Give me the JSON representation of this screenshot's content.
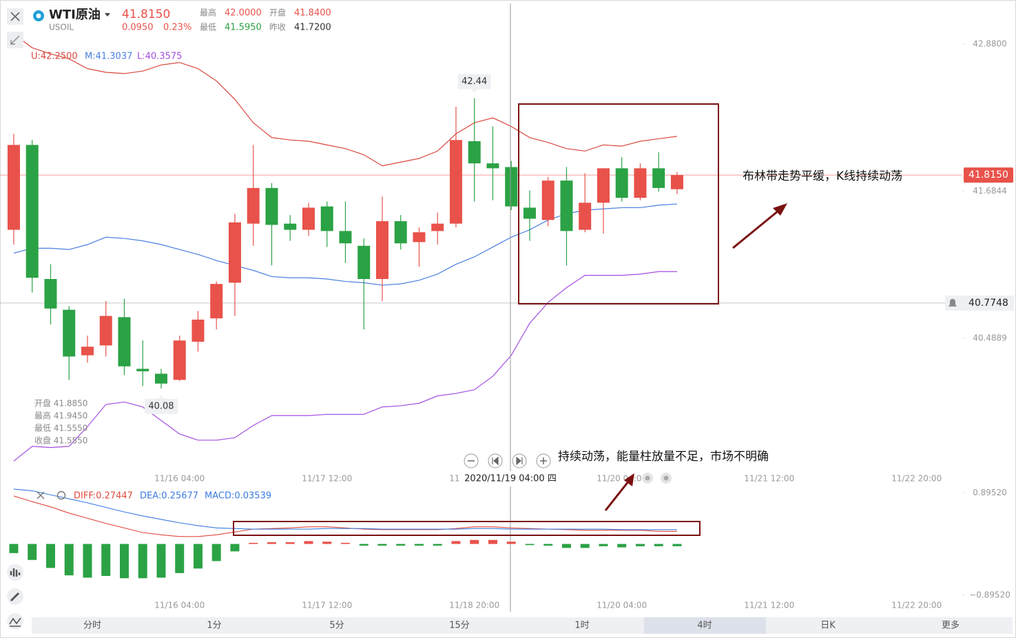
{
  "header": {
    "symbol": "WTI原油",
    "code": "USOIL",
    "price": "41.8150",
    "change": "0.0950",
    "change_pct": "0.23%",
    "stats": [
      {
        "label": "最高",
        "value": "42.0000"
      },
      {
        "label": "开盘",
        "value": "41.8400"
      },
      {
        "label": "最低",
        "value": "41.5950"
      },
      {
        "label": "昨收",
        "value": "41.7200"
      }
    ]
  },
  "readout": [
    "开盘 41.8850",
    "最高 41.9450",
    "最低 41.5550",
    "收盘 41.5550"
  ],
  "chart_data": [
    {
      "type": "candlestick",
      "categories": [
        null,
        null,
        null,
        null,
        null,
        null,
        null,
        null,
        null,
        "11/16 04:00",
        null,
        null,
        null,
        null,
        null,
        null,
        null,
        "11/17 12:00",
        null,
        null,
        null,
        null,
        null,
        null,
        null,
        "11/18 20:00",
        null,
        null,
        null,
        null,
        null,
        null,
        null,
        "11/20 04:00",
        null,
        null,
        null,
        null,
        null,
        null,
        null,
        "11/21 12:00",
        null,
        null,
        null,
        null,
        null,
        null,
        null,
        "11/22 20:00"
      ],
      "open": [
        41.37,
        42.06,
        40.97,
        40.72,
        40.35,
        40.43,
        40.66,
        40.24,
        40.2,
        40.15,
        40.46,
        40.65,
        40.94,
        41.42,
        41.71,
        41.42,
        41.37,
        41.56,
        41.36,
        41.24,
        40.97,
        41.44,
        41.27,
        41.36,
        41.42,
        42.09,
        41.91,
        41.88,
        41.55,
        41.45,
        41.77,
        41.37,
        41.59,
        41.87,
        41.63,
        41.87,
        41.7,
        null,
        null,
        null,
        null,
        null,
        null,
        null,
        null,
        null,
        null,
        null,
        null,
        null
      ],
      "high": [
        42.15,
        42.1,
        41.09,
        40.75,
        40.51,
        40.79,
        40.81,
        40.47,
        40.24,
        40.51,
        40.71,
        40.95,
        41.5,
        42.06,
        41.75,
        41.49,
        41.59,
        41.6,
        41.6,
        41.3,
        41.64,
        41.49,
        41.39,
        41.51,
        42.37,
        42.44,
        42.21,
        41.93,
        41.69,
        41.8,
        41.88,
        41.83,
        41.87,
        41.96,
        41.91,
        42.0,
        41.84,
        null,
        null,
        null,
        null,
        null,
        null,
        null,
        null,
        null,
        null,
        null,
        null,
        null
      ],
      "low": [
        41.25,
        40.86,
        40.6,
        40.15,
        40.29,
        40.34,
        40.19,
        40.1,
        40.08,
        40.14,
        40.38,
        40.56,
        40.67,
        41.24,
        41.08,
        41.28,
        41.32,
        41.23,
        41.1,
        40.56,
        40.79,
        41.21,
        41.07,
        41.25,
        41.39,
        41.6,
        41.61,
        41.53,
        41.28,
        41.4,
        41.08,
        41.35,
        41.34,
        41.6,
        41.61,
        41.68,
        41.66,
        null,
        null,
        null,
        null,
        null,
        null,
        null,
        null,
        null,
        null,
        null,
        null,
        null
      ],
      "close": [
        42.06,
        40.98,
        40.73,
        40.34,
        40.42,
        40.67,
        40.26,
        40.22,
        40.12,
        40.47,
        40.64,
        40.93,
        41.43,
        41.71,
        41.41,
        41.37,
        41.55,
        41.36,
        41.26,
        40.97,
        41.44,
        41.26,
        41.35,
        41.42,
        42.1,
        41.91,
        41.87,
        41.56,
        41.46,
        41.77,
        41.36,
        41.59,
        41.87,
        41.63,
        41.87,
        41.71,
        41.815,
        null,
        null,
        null,
        null,
        null,
        null,
        null,
        null,
        null,
        null,
        null,
        null,
        null
      ],
      "up_color": "#e8524a",
      "down_color": "#2ba245",
      "series": [
        {
          "name": "U:42.2500",
          "color": "#d9473d",
          "values": [
            42.96,
            42.85,
            42.8,
            42.76,
            42.68,
            42.65,
            42.64,
            42.66,
            42.71,
            42.73,
            42.68,
            42.58,
            42.43,
            42.24,
            42.12,
            42.1,
            42.09,
            42.06,
            42.03,
            41.98,
            41.89,
            41.92,
            41.95,
            42.01,
            42.15,
            42.24,
            42.28,
            42.21,
            42.12,
            42.08,
            42.03,
            42.01,
            42.06,
            42.05,
            42.09,
            42.11,
            42.13,
            null,
            null,
            null,
            null,
            null,
            null,
            null,
            null,
            null,
            null,
            null,
            null,
            null
          ]
        },
        {
          "name": "M:41.3037",
          "color": "#4a7fe0",
          "values": [
            41.18,
            41.22,
            41.22,
            41.21,
            41.25,
            41.31,
            41.3,
            41.28,
            41.25,
            41.21,
            41.17,
            41.12,
            41.08,
            41.04,
            40.99,
            40.98,
            40.98,
            40.97,
            40.95,
            40.94,
            40.92,
            40.93,
            40.96,
            41.01,
            41.09,
            41.15,
            41.23,
            41.31,
            41.37,
            41.45,
            41.5,
            41.53,
            41.54,
            41.55,
            41.55,
            41.57,
            41.58,
            null,
            null,
            null,
            null,
            null,
            null,
            null,
            null,
            null,
            null,
            null,
            null,
            null
          ]
        },
        {
          "name": "L:40.3575",
          "color": "#a24ee0",
          "values": [
            39.49,
            39.61,
            39.6,
            39.61,
            39.77,
            39.95,
            39.97,
            39.93,
            39.82,
            39.71,
            39.66,
            39.66,
            39.68,
            39.78,
            39.86,
            39.86,
            39.86,
            39.87,
            39.87,
            39.87,
            39.93,
            39.94,
            39.96,
            40.02,
            40.04,
            40.07,
            40.18,
            40.35,
            40.61,
            40.78,
            40.9,
            41.0,
            41.0,
            41.0,
            41.01,
            41.03,
            41.03,
            null,
            null,
            null,
            null,
            null,
            null,
            null,
            null,
            null,
            null,
            null,
            null,
            null
          ]
        }
      ],
      "ylim": [
        39.43,
        43.21
      ],
      "yticks": [
        {
          "value": 42.88,
          "label": "42.8800"
        },
        {
          "value": 41.6844,
          "label": "41.6844"
        },
        {
          "value": 40.4889,
          "label": "40.4889"
        }
      ],
      "grid": false,
      "price_lines": [
        {
          "value": 41.815,
          "label": "41.8150",
          "color": "#e8524a"
        },
        {
          "value": 40.7748,
          "color": "#9a9a9a"
        }
      ],
      "extreme_labels": [
        42.44,
        40.08
      ],
      "crosshair_label": "2020/11/19 04:00 四"
    },
    {
      "type": "macd",
      "series": [
        {
          "name": "DIFF:0.27447",
          "color": "#e0483e",
          "values": [
            0.84,
            0.74,
            0.65,
            0.54,
            0.45,
            0.36,
            0.28,
            0.2,
            0.16,
            0.13,
            0.13,
            0.16,
            0.21,
            0.26,
            0.27,
            0.28,
            0.3,
            0.3,
            0.28,
            0.26,
            0.25,
            0.25,
            0.25,
            0.25,
            0.27,
            0.3,
            0.3,
            0.28,
            0.27,
            0.26,
            0.25,
            0.24,
            0.24,
            0.24,
            0.24,
            0.22,
            0.22
          ]
        },
        {
          "name": "DEA:0.25677",
          "color": "#3b7be0",
          "values": [
            0.96,
            0.93,
            0.86,
            0.79,
            0.72,
            0.64,
            0.56,
            0.49,
            0.43,
            0.37,
            0.32,
            0.28,
            0.27,
            0.26,
            0.26,
            0.26,
            0.26,
            0.27,
            0.27,
            0.27,
            0.26,
            0.26,
            0.26,
            0.26,
            0.26,
            0.27,
            0.27,
            0.26,
            0.26,
            0.26,
            0.26,
            0.26,
            0.26,
            0.25,
            0.25,
            0.25,
            0.25
          ]
        }
      ],
      "histogram": {
        "name": "MACD:0.03539",
        "color": "#3b7be0",
        "up_color": "#e8524a",
        "down_color": "#2ba245",
        "values": [
          -0.16,
          -0.28,
          -0.42,
          -0.55,
          -0.59,
          -0.56,
          -0.6,
          -0.6,
          -0.59,
          -0.51,
          -0.43,
          -0.3,
          -0.13,
          0.02,
          0.03,
          0.03,
          0.05,
          0.04,
          0.02,
          -0.03,
          -0.03,
          -0.03,
          -0.03,
          -0.03,
          0.05,
          0.07,
          0.07,
          0.04,
          -0.02,
          -0.03,
          -0.07,
          -0.07,
          -0.04,
          -0.06,
          -0.04,
          -0.04,
          -0.04
        ]
      },
      "ylim": [
        -0.97,
        1.02
      ],
      "yticks": [
        {
          "value": 0.8952,
          "label": "0.89520"
        },
        {
          "value": -0.8952,
          "label": "−0.89520"
        }
      ]
    }
  ],
  "annotations": [
    "布林带走势平缓，K线持续动荡",
    "持续动荡，能量柱放量不足，市场不明确"
  ],
  "tabs": [
    "分时",
    "1分",
    "5分",
    "15分",
    "1时",
    "4时",
    "日K",
    "更多"
  ]
}
